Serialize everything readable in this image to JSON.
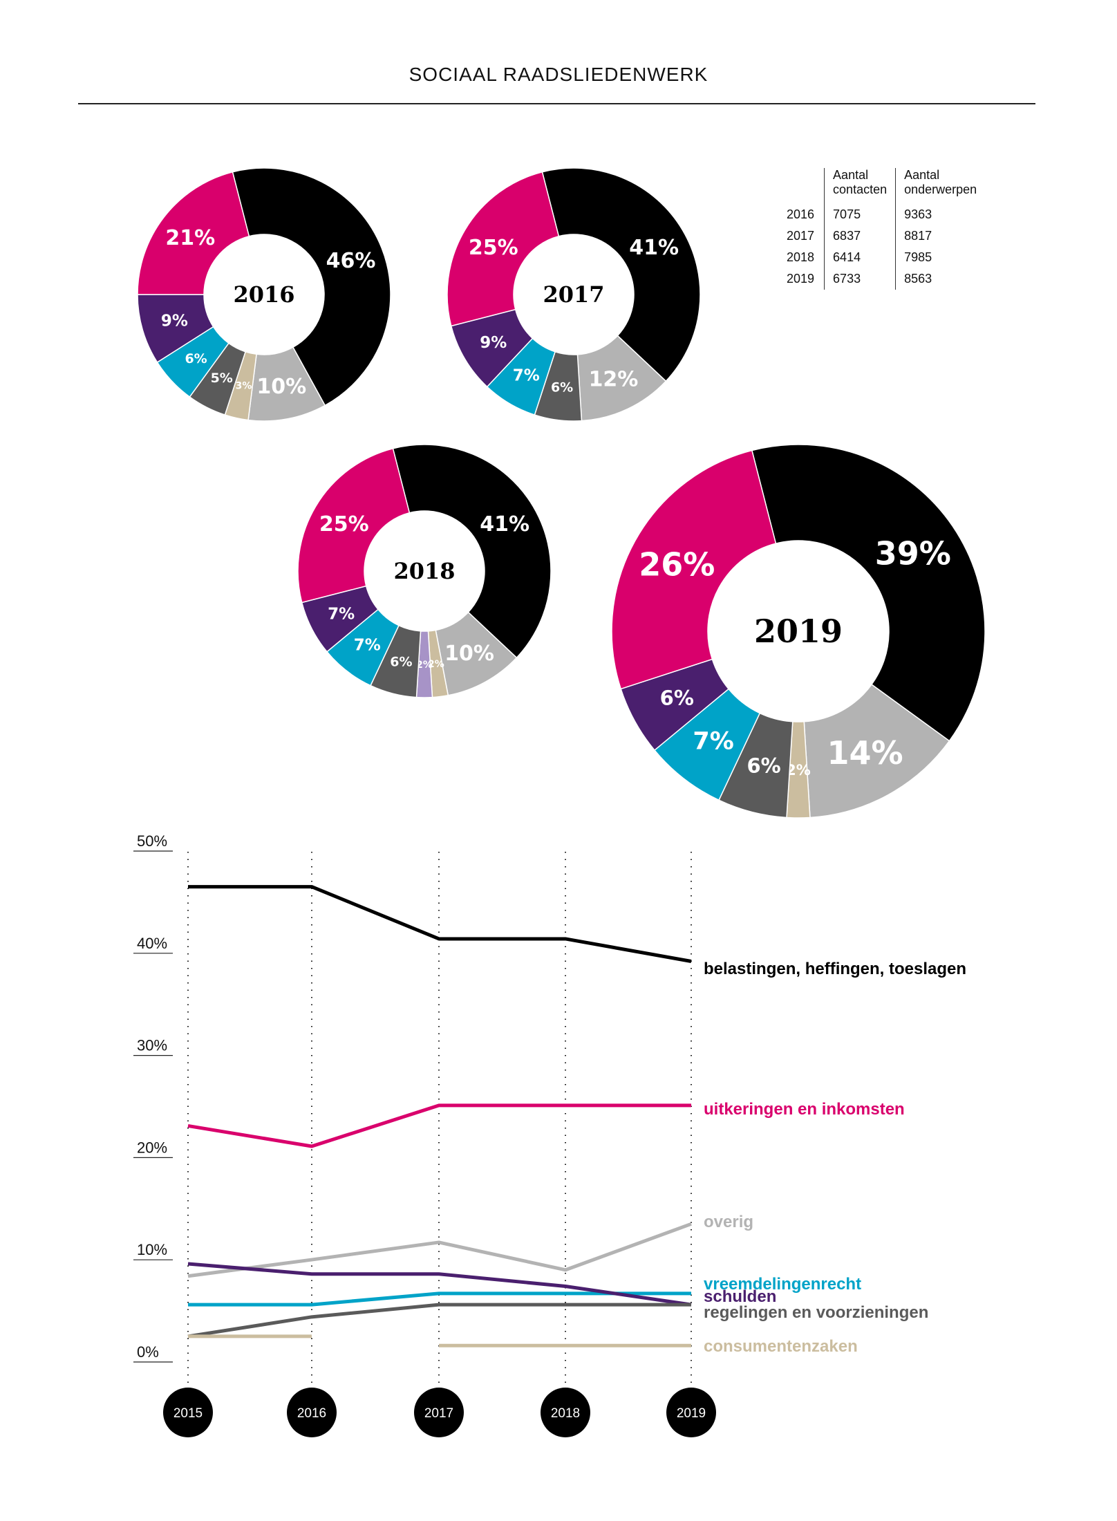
{
  "page": {
    "title": "SOCIAAL RAADSLIEDENWERK"
  },
  "table": {
    "headers": [
      "",
      "Aantal contacten",
      "Aantal onderwerpen"
    ],
    "header_lines": [
      [
        "",
        ""
      ],
      [
        "Aantal",
        "contacten"
      ],
      [
        "Aantal",
        "onderwerpen"
      ]
    ],
    "rows": [
      [
        "2016",
        "7075",
        "9363"
      ],
      [
        "2017",
        "6837",
        "8817"
      ],
      [
        "2018",
        "6414",
        "7985"
      ],
      [
        "2019",
        "6733",
        "8563"
      ]
    ]
  },
  "colors": {
    "belastingen": "#000000",
    "uitkeringen": "#d9006c",
    "schulden": "#4a1f6e",
    "vreemdelingenrecht": "#00a3c8",
    "regelingen": "#5a5a5a",
    "consumentenzaken": "#cbbd9f",
    "overig": "#b3b3b3",
    "other_small": "#a793c7"
  },
  "chart_data": [
    {
      "type": "pie",
      "donut": true,
      "center_label": "2016",
      "slices": [
        {
          "category": "belastingen",
          "value": 46,
          "label": "46%"
        },
        {
          "category": "overig",
          "value": 10,
          "label": "10%"
        },
        {
          "category": "consumentenzaken",
          "value": 3,
          "label": "3%"
        },
        {
          "category": "regelingen",
          "value": 5,
          "label": "5%"
        },
        {
          "category": "vreemdelingenrecht",
          "value": 6,
          "label": "6%"
        },
        {
          "category": "schulden",
          "value": 9,
          "label": "9%"
        },
        {
          "category": "uitkeringen",
          "value": 21,
          "label": "21%"
        }
      ]
    },
    {
      "type": "pie",
      "donut": true,
      "center_label": "2017",
      "slices": [
        {
          "category": "belastingen",
          "value": 41,
          "label": "41%"
        },
        {
          "category": "overig",
          "value": 12,
          "label": "12%"
        },
        {
          "category": "regelingen",
          "value": 6,
          "label": "6%"
        },
        {
          "category": "vreemdelingenrecht",
          "value": 7,
          "label": "7%"
        },
        {
          "category": "schulden",
          "value": 9,
          "label": "9%"
        },
        {
          "category": "uitkeringen",
          "value": 25,
          "label": "25%"
        }
      ]
    },
    {
      "type": "pie",
      "donut": true,
      "center_label": "2018",
      "slices": [
        {
          "category": "belastingen",
          "value": 41,
          "label": "41%"
        },
        {
          "category": "overig",
          "value": 10,
          "label": "10%"
        },
        {
          "category": "consumentenzaken",
          "value": 2,
          "label": "2%"
        },
        {
          "category": "other_small",
          "value": 2,
          "label": "2%"
        },
        {
          "category": "regelingen",
          "value": 6,
          "label": "6%"
        },
        {
          "category": "vreemdelingenrecht",
          "value": 7,
          "label": "7%"
        },
        {
          "category": "schulden",
          "value": 7,
          "label": "7%"
        },
        {
          "category": "uitkeringen",
          "value": 25,
          "label": "25%"
        }
      ]
    },
    {
      "type": "pie",
      "donut": true,
      "center_label": "2019",
      "slices": [
        {
          "category": "belastingen",
          "value": 39,
          "label": "39%"
        },
        {
          "category": "overig",
          "value": 14,
          "label": "14%"
        },
        {
          "category": "consumentenzaken",
          "value": 2,
          "label": "2%"
        },
        {
          "category": "regelingen",
          "value": 6,
          "label": "6%"
        },
        {
          "category": "vreemdelingenrecht",
          "value": 7,
          "label": "7%"
        },
        {
          "category": "schulden",
          "value": 6,
          "label": "6%"
        },
        {
          "category": "uitkeringen",
          "value": 26,
          "label": "26%"
        }
      ]
    },
    {
      "type": "line",
      "x": [
        "2015",
        "2016",
        "2017",
        "2018",
        "2019"
      ],
      "ylim": [
        0,
        50
      ],
      "yticks": [
        0,
        10,
        20,
        30,
        40,
        50
      ],
      "ytick_labels": [
        "0%",
        "10%",
        "20%",
        "30%",
        "40%",
        "50%"
      ],
      "legend": "right-end labels",
      "series": [
        {
          "name": "belastingen, heffingen, toeslagen",
          "key": "belastingen",
          "values": [
            45.9,
            45.9,
            40.8,
            40.8,
            38.6
          ]
        },
        {
          "name": "uitkeringen en inkomsten",
          "key": "uitkeringen",
          "values": [
            22.5,
            20.5,
            24.5,
            24.5,
            24.5
          ]
        },
        {
          "name": "overig",
          "key": "overig",
          "values": [
            7.8,
            9.4,
            11.1,
            8.4,
            12.9
          ]
        },
        {
          "name": "vreemdelingenrecht",
          "key": "vreemdelingenrecht",
          "values": [
            5.0,
            5.0,
            6.1,
            6.1,
            6.1
          ]
        },
        {
          "name": "schulden",
          "key": "schulden",
          "values": [
            9.0,
            8.0,
            8.0,
            6.8,
            5.0
          ]
        },
        {
          "name": "regelingen en voorzieningen",
          "key": "regelingen",
          "values": [
            1.9,
            3.8,
            5.0,
            5.0,
            5.0
          ]
        },
        {
          "name": "consumentenzaken",
          "key": "consumentenzaken",
          "values": [
            1.9,
            1.9,
            1.0,
            1.0,
            1.0
          ],
          "segments": [
            [
              0,
              1
            ],
            [
              2,
              4
            ]
          ]
        }
      ]
    }
  ]
}
